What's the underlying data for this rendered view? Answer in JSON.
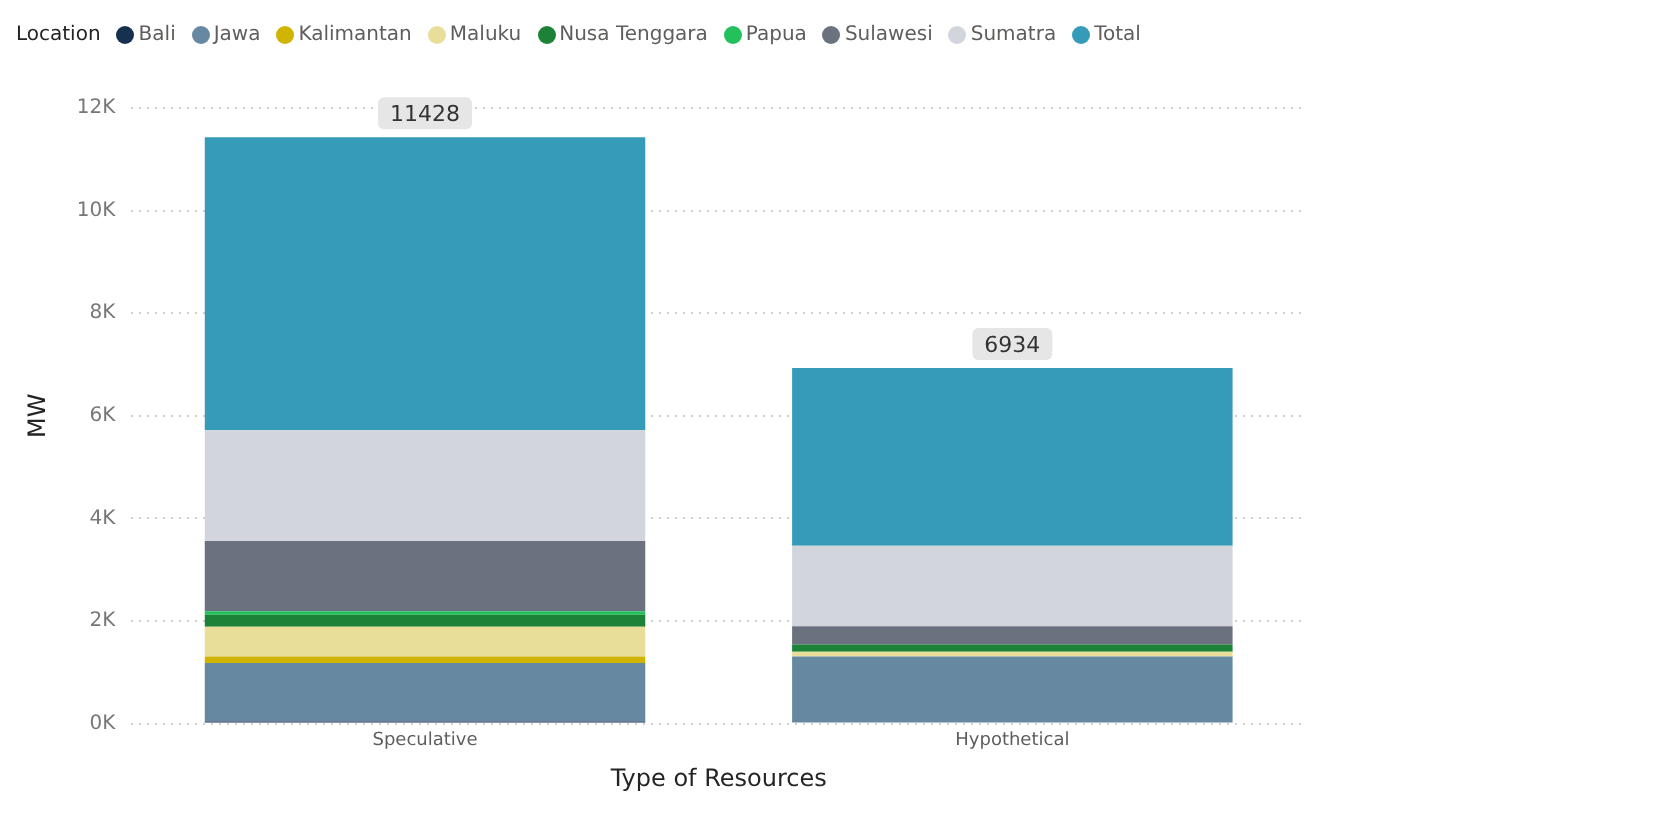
{
  "chart_data": {
    "type": "bar",
    "stacked": true,
    "xlabel": "Type of Resources",
    "ylabel": "MW",
    "legend_title": "Location",
    "legend": "top left",
    "grid": "y",
    "categories": [
      "Speculative",
      "Hypothetical"
    ],
    "series": [
      {
        "name": "Bali",
        "color": "#15314f",
        "values": [
          40,
          null
        ]
      },
      {
        "name": "Jawa",
        "color": "#6688a1",
        "values": [
          1140,
          1310
        ]
      },
      {
        "name": "Kalimantan",
        "color": "#d1b400",
        "values": [
          130,
          null
        ]
      },
      {
        "name": "Maluku",
        "color": "#e8de9a",
        "values": [
          580,
          90
        ]
      },
      {
        "name": "Nusa Tenggara",
        "color": "#1b8237",
        "values": [
          230,
          140
        ]
      },
      {
        "name": "Papua",
        "color": "#23c05c",
        "values": [
          70,
          null
        ]
      },
      {
        "name": "Sulawesi",
        "color": "#6b717e",
        "values": [
          1370,
          360
        ]
      },
      {
        "name": "Sumatra",
        "color": "#d2d5dc",
        "values": [
          2160,
          1567
        ]
      },
      {
        "name": "Total",
        "color": "#359bb9",
        "values": [
          5708,
          3467
        ]
      }
    ],
    "totals": [
      "11428",
      "6934"
    ],
    "ylim": [
      0,
      12000
    ],
    "yticks": [
      {
        "value": 0,
        "label": "0K"
      },
      {
        "value": 2000,
        "label": "2K"
      },
      {
        "value": 4000,
        "label": "4K"
      },
      {
        "value": 6000,
        "label": "6K"
      },
      {
        "value": 8000,
        "label": "8K"
      },
      {
        "value": 10000,
        "label": "10K"
      },
      {
        "value": 12000,
        "label": "12K"
      }
    ]
  }
}
